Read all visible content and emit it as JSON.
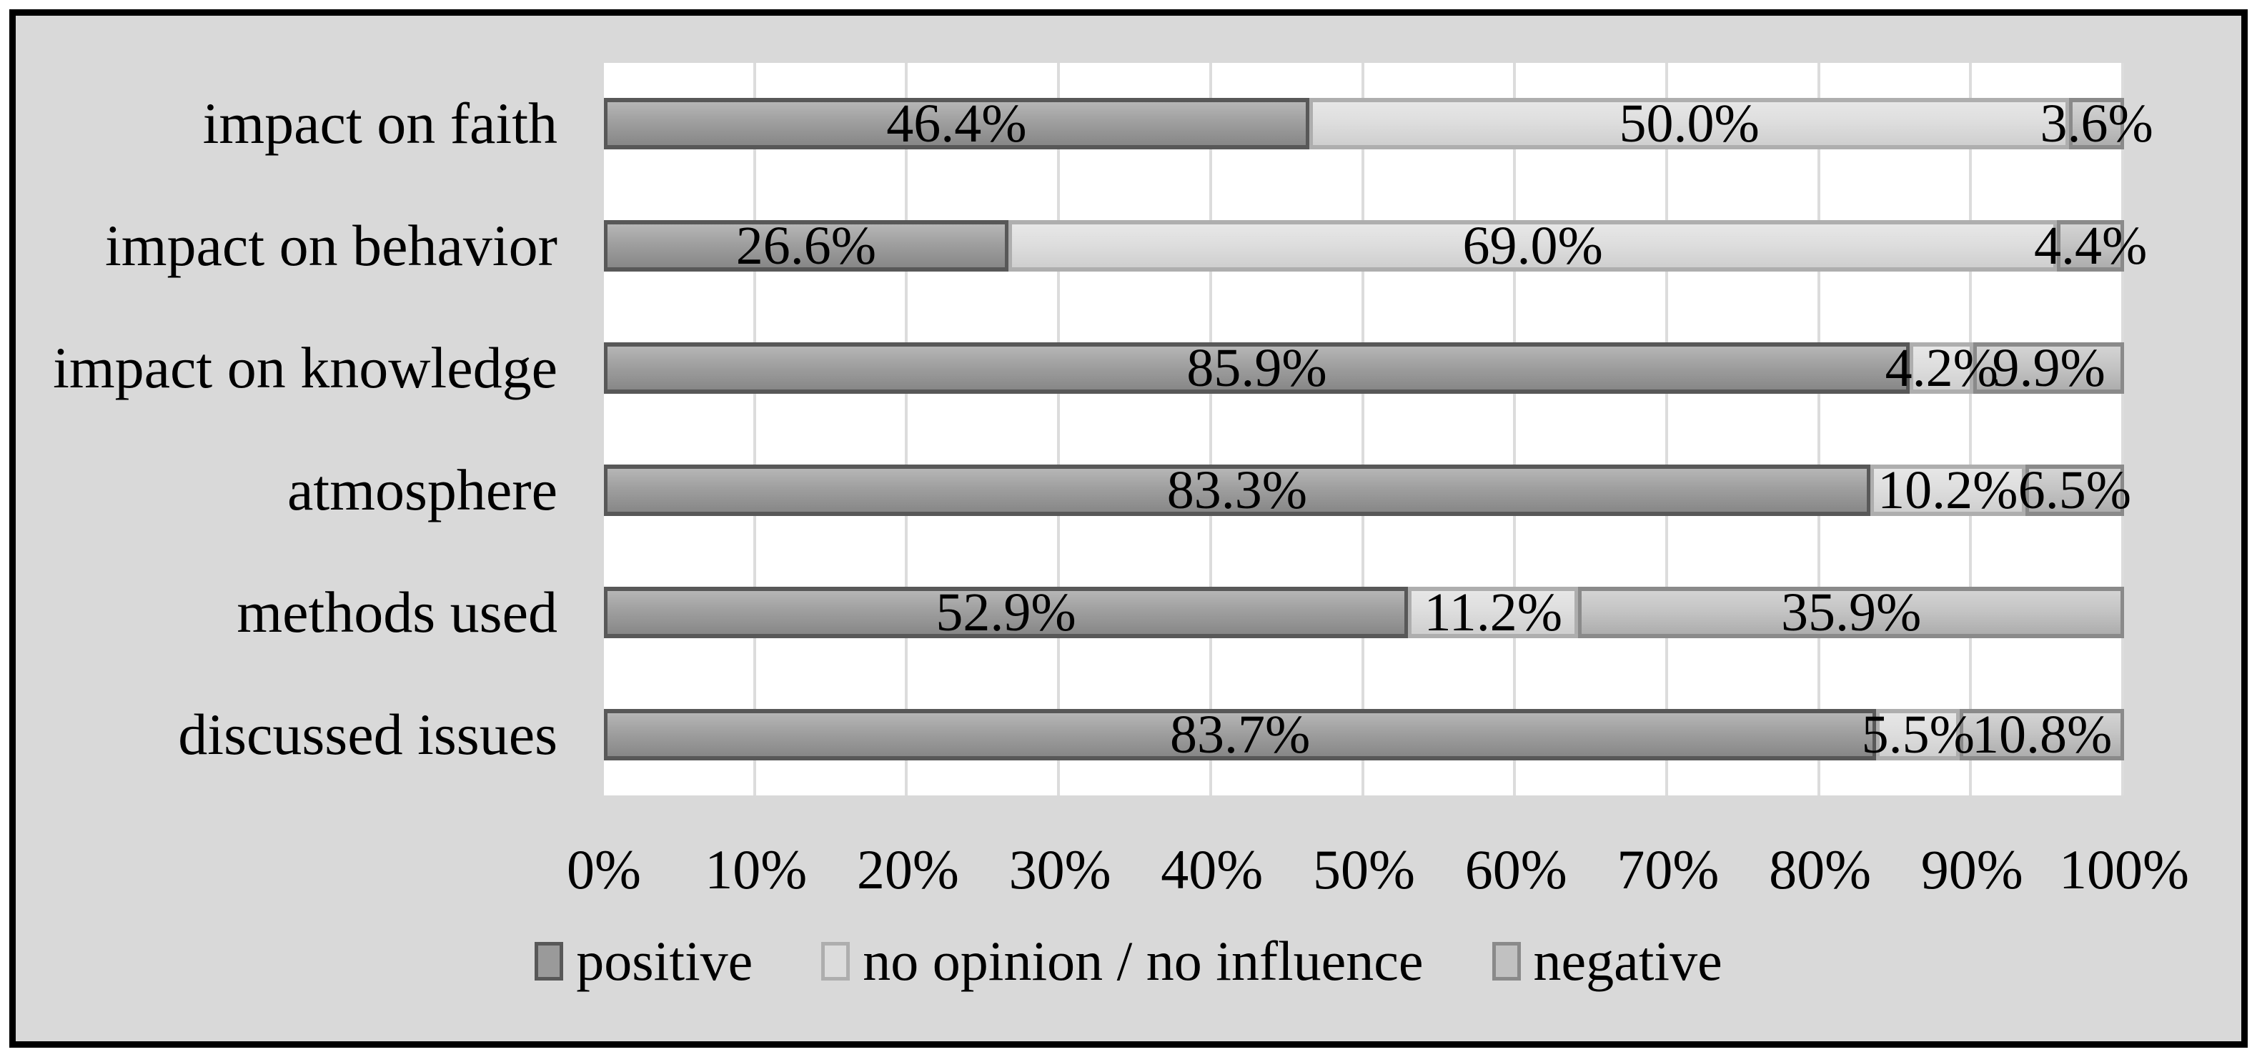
{
  "chart_data": {
    "type": "bar",
    "variant": "horizontal-stacked",
    "title": "",
    "categories": [
      "impact on faith",
      "impact on behavior",
      "impact on knowledge",
      "atmosphere",
      "methods used",
      "discussed issues"
    ],
    "series": [
      {
        "key": "positive",
        "name": "positive",
        "values": [
          46.4,
          26.6,
          85.9,
          83.3,
          52.9,
          83.7
        ],
        "labels": [
          "46.4%",
          "26.6%",
          "85.9%",
          "83.3%",
          "52.9%",
          "83.7%"
        ],
        "fill": "#9a9a9a",
        "border": "#585858"
      },
      {
        "key": "no-opinion",
        "name": "no opinion / no influence",
        "values": [
          50.0,
          69.0,
          4.2,
          10.2,
          11.2,
          5.5
        ],
        "labels": [
          "50.0%",
          "69.0%",
          "4.2%",
          "10.2%",
          "11.2%",
          "5.5%"
        ],
        "fill": "#dcdcdc",
        "border": "#aeaeae"
      },
      {
        "key": "negative",
        "name": "negative",
        "values": [
          3.6,
          4.4,
          9.9,
          6.5,
          35.9,
          10.8
        ],
        "labels": [
          "3.6%",
          "4.4%",
          "9.9%",
          "6.5%",
          "35.9%",
          "10.8%"
        ],
        "fill": "#c1c1c1",
        "border": "#8a8a8a"
      }
    ],
    "x_axis": {
      "min": 0,
      "max": 100,
      "step": 10,
      "tick_labels": [
        "0%",
        "10%",
        "20%",
        "30%",
        "40%",
        "50%",
        "60%",
        "70%",
        "80%",
        "90%",
        "100%"
      ]
    },
    "grid": "vertical-major",
    "legend_position": "bottom",
    "colors": {
      "background": "#d9d9d9",
      "plot_background": "#ffffff",
      "gridline": "#dcdcdc",
      "text": "#000000",
      "frame_border": "#000000"
    }
  }
}
